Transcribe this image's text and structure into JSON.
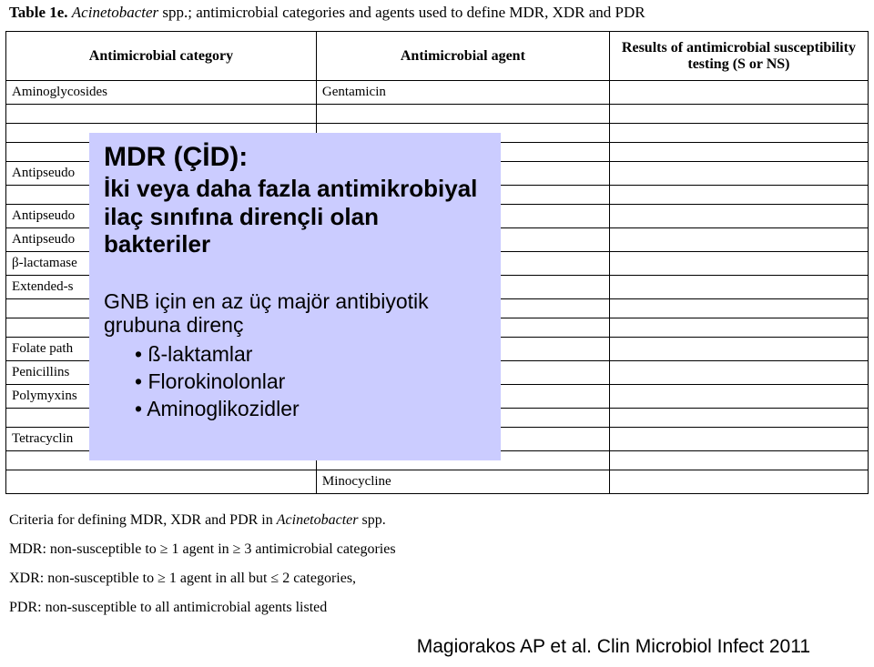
{
  "caption": {
    "label": "Table 1e.",
    "species": "Acinetobacter",
    "spp": " spp.; ",
    "rest": "antimicrobial categories and agents used to define MDR, XDR and PDR"
  },
  "table": {
    "headers": {
      "c1": "Antimicrobial category",
      "c2": "Antimicrobial agent",
      "c3": "Results of antimicrobial susceptibility testing (S or NS)"
    },
    "rows": [
      {
        "cat": "Aminoglycosides",
        "agent": "Gentamicin",
        "res": ""
      },
      {
        "cat": "",
        "agent": "",
        "res": ""
      },
      {
        "cat": "",
        "agent": "",
        "res": ""
      },
      {
        "cat": "",
        "agent": "",
        "res": ""
      },
      {
        "cat": "Antipseudo",
        "agent": "",
        "res": ""
      },
      {
        "cat": "",
        "agent": "",
        "res": ""
      },
      {
        "cat": "Antipseudo",
        "agent": "",
        "res": ""
      },
      {
        "cat": "Antipseudo",
        "agent": "",
        "res": ""
      },
      {
        "cat": "β-lactamase",
        "agent": "",
        "res": ""
      },
      {
        "cat": "Extended-s",
        "agent": "",
        "res": ""
      },
      {
        "cat": "",
        "agent": "",
        "res": ""
      },
      {
        "cat": "",
        "agent": "",
        "res": ""
      },
      {
        "cat": "Folate path",
        "agent": "",
        "res": ""
      },
      {
        "cat": "Penicillins",
        "agent": "",
        "res": ""
      },
      {
        "cat": "Polymyxins",
        "agent": "",
        "res": ""
      },
      {
        "cat": "",
        "agent": "",
        "res": ""
      },
      {
        "cat": "Tetracyclin",
        "agent": "",
        "res": ""
      },
      {
        "cat": "",
        "agent": "",
        "res": ""
      },
      {
        "cat": "",
        "agent": "Minocycline",
        "res": ""
      }
    ]
  },
  "overlay": {
    "title": "MDR (ÇİD):",
    "body": "İki veya daha fazla antimikrobiyal ilaç sınıfına dirençli olan bakteriler",
    "sub": "GNB için en az üç majör antibiyotik grubuna direnç",
    "items": [
      "ß-laktamlar",
      "Florokinolonlar",
      "Aminoglikozidler"
    ]
  },
  "criteria": {
    "l1a": "Criteria for defining MDR, XDR and PDR in ",
    "l1b": "Acinetobacter",
    "l1c": " spp.",
    "l2": "MDR: non-susceptible to ≥ 1 agent in ≥ 3 antimicrobial categories",
    "l3": "XDR: non-susceptible to ≥ 1 agent in all but ≤ 2 categories,",
    "l4": "PDR: non-susceptible to all antimicrobial agents listed"
  },
  "citation": "Magiorakos AP et al. Clin Microbiol Infect 2011"
}
